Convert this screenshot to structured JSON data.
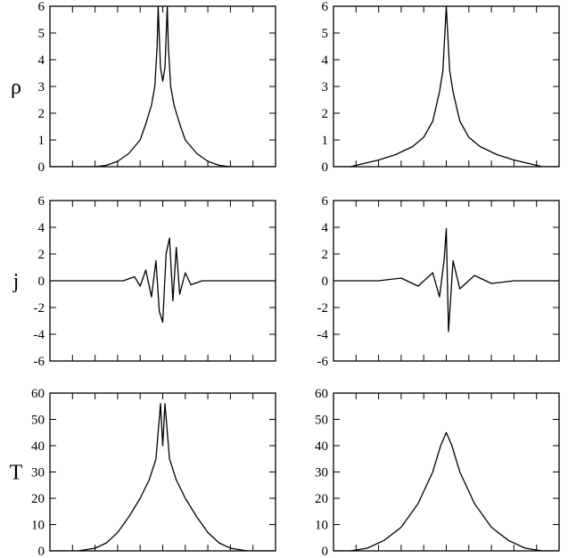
{
  "chart_data": [
    {
      "type": "line",
      "ylabel": "ρ",
      "ylim": [
        0,
        6
      ],
      "yticks": [
        0,
        1,
        2,
        3,
        4,
        5,
        6
      ],
      "xlim": [
        -1,
        1
      ],
      "x_tick_labels_shown": false,
      "series": [
        {
          "points": [
            [
              -1.0,
              0
            ],
            [
              -0.6,
              0.0
            ],
            [
              -0.5,
              0.05
            ],
            [
              -0.4,
              0.2
            ],
            [
              -0.3,
              0.5
            ],
            [
              -0.2,
              1.0
            ],
            [
              -0.15,
              1.6
            ],
            [
              -0.1,
              2.3
            ],
            [
              -0.07,
              3.0
            ],
            [
              -0.05,
              4.5
            ],
            [
              -0.04,
              6.0
            ],
            [
              -0.02,
              3.7
            ],
            [
              0.0,
              3.2
            ],
            [
              0.02,
              3.7
            ],
            [
              0.04,
              6.0
            ],
            [
              0.05,
              4.5
            ],
            [
              0.07,
              3.0
            ],
            [
              0.1,
              2.3
            ],
            [
              0.15,
              1.6
            ],
            [
              0.2,
              1.0
            ],
            [
              0.3,
              0.5
            ],
            [
              0.4,
              0.2
            ],
            [
              0.5,
              0.05
            ],
            [
              0.6,
              0.0
            ],
            [
              1.0,
              0
            ]
          ]
        }
      ]
    },
    {
      "type": "line",
      "ylabel": "",
      "ylim": [
        0,
        6
      ],
      "yticks": [
        0,
        1,
        2,
        3,
        4,
        5,
        6
      ],
      "xlim": [
        -1,
        1
      ],
      "x_tick_labels_shown": false,
      "series": [
        {
          "points": [
            [
              -1.0,
              0
            ],
            [
              -0.85,
              0.0
            ],
            [
              -0.75,
              0.1
            ],
            [
              -0.6,
              0.25
            ],
            [
              -0.45,
              0.45
            ],
            [
              -0.3,
              0.75
            ],
            [
              -0.2,
              1.1
            ],
            [
              -0.12,
              1.7
            ],
            [
              -0.06,
              2.8
            ],
            [
              -0.03,
              3.6
            ],
            [
              0.0,
              6.0
            ],
            [
              0.03,
              3.6
            ],
            [
              0.06,
              2.8
            ],
            [
              0.12,
              1.7
            ],
            [
              0.2,
              1.1
            ],
            [
              0.3,
              0.75
            ],
            [
              0.45,
              0.45
            ],
            [
              0.6,
              0.25
            ],
            [
              0.75,
              0.1
            ],
            [
              0.85,
              0.0
            ],
            [
              1.0,
              0
            ]
          ]
        }
      ]
    },
    {
      "type": "line",
      "ylabel": "j",
      "ylim": [
        -6,
        6
      ],
      "yticks": [
        -6,
        -4,
        -2,
        0,
        2,
        4,
        6
      ],
      "xlim": [
        -1,
        1
      ],
      "x_tick_labels_shown": false,
      "series": [
        {
          "points": [
            [
              -1.0,
              0
            ],
            [
              -0.35,
              0.0
            ],
            [
              -0.25,
              0.3
            ],
            [
              -0.2,
              -0.4
            ],
            [
              -0.15,
              0.8
            ],
            [
              -0.1,
              -1.2
            ],
            [
              -0.06,
              1.5
            ],
            [
              -0.03,
              -2.3
            ],
            [
              0.0,
              -3.1
            ],
            [
              0.03,
              2.0
            ],
            [
              0.06,
              3.2
            ],
            [
              0.09,
              -1.5
            ],
            [
              0.12,
              2.5
            ],
            [
              0.15,
              -1.0
            ],
            [
              0.2,
              0.6
            ],
            [
              0.25,
              -0.3
            ],
            [
              0.35,
              0.0
            ],
            [
              1.0,
              0
            ]
          ]
        }
      ]
    },
    {
      "type": "line",
      "ylabel": "",
      "ylim": [
        -6,
        6
      ],
      "yticks": [
        -6,
        -4,
        -2,
        0,
        2,
        4,
        6
      ],
      "xlim": [
        -1,
        1
      ],
      "x_tick_labels_shown": false,
      "series": [
        {
          "points": [
            [
              -1.0,
              0
            ],
            [
              -0.6,
              0.0
            ],
            [
              -0.4,
              0.2
            ],
            [
              -0.25,
              -0.4
            ],
            [
              -0.12,
              0.6
            ],
            [
              -0.06,
              -1.2
            ],
            [
              -0.02,
              1.5
            ],
            [
              0.0,
              3.9
            ],
            [
              0.02,
              -3.8
            ],
            [
              0.06,
              1.5
            ],
            [
              0.12,
              -0.6
            ],
            [
              0.25,
              0.4
            ],
            [
              0.4,
              -0.2
            ],
            [
              0.6,
              0.0
            ],
            [
              1.0,
              0
            ]
          ]
        }
      ]
    },
    {
      "type": "line",
      "ylabel": "T",
      "ylim": [
        0,
        60
      ],
      "yticks": [
        0,
        10,
        20,
        30,
        40,
        50,
        60
      ],
      "xlim": [
        -1,
        1
      ],
      "x_tick_labels_shown": false,
      "series": [
        {
          "points": [
            [
              -1.0,
              0
            ],
            [
              -0.75,
              0.0
            ],
            [
              -0.6,
              1.0
            ],
            [
              -0.5,
              3.0
            ],
            [
              -0.4,
              7.0
            ],
            [
              -0.3,
              13.0
            ],
            [
              -0.2,
              20.0
            ],
            [
              -0.12,
              27.0
            ],
            [
              -0.06,
              35.0
            ],
            [
              -0.02,
              56.0
            ],
            [
              0.0,
              40.0
            ],
            [
              0.02,
              56.0
            ],
            [
              0.06,
              35.0
            ],
            [
              0.12,
              27.0
            ],
            [
              0.2,
              20.0
            ],
            [
              0.3,
              13.0
            ],
            [
              0.4,
              7.0
            ],
            [
              0.5,
              3.0
            ],
            [
              0.6,
              1.0
            ],
            [
              0.75,
              0.0
            ],
            [
              1.0,
              0
            ]
          ]
        }
      ]
    },
    {
      "type": "line",
      "ylabel": "",
      "ylim": [
        0,
        60
      ],
      "yticks": [
        0,
        10,
        20,
        30,
        40,
        50,
        60
      ],
      "xlim": [
        -1,
        1
      ],
      "x_tick_labels_shown": false,
      "series": [
        {
          "points": [
            [
              -1.0,
              0
            ],
            [
              -0.85,
              0.0
            ],
            [
              -0.7,
              1.0
            ],
            [
              -0.55,
              4.0
            ],
            [
              -0.4,
              9.0
            ],
            [
              -0.25,
              18.0
            ],
            [
              -0.12,
              30.0
            ],
            [
              -0.05,
              40.0
            ],
            [
              0.0,
              45.0
            ],
            [
              0.05,
              40.0
            ],
            [
              0.12,
              30.0
            ],
            [
              0.25,
              18.0
            ],
            [
              0.4,
              9.0
            ],
            [
              0.55,
              4.0
            ],
            [
              0.7,
              1.0
            ],
            [
              0.85,
              0.0
            ],
            [
              1.0,
              0
            ]
          ]
        }
      ]
    }
  ]
}
